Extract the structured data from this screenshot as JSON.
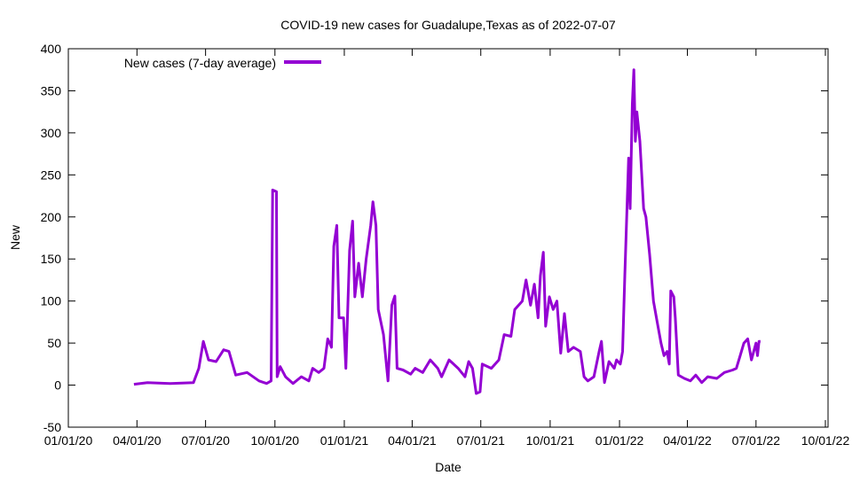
{
  "chart_data": {
    "type": "line",
    "title": "COVID-19 new cases for Guadalupe,Texas as of 2022-07-07",
    "xlabel": "Date",
    "ylabel": "New",
    "xlim": [
      "2020-01-01",
      "2022-10-01"
    ],
    "ylim": [
      -50,
      400
    ],
    "x_ticks": [
      "01/01/20",
      "04/01/20",
      "07/01/20",
      "10/01/20",
      "01/01/21",
      "04/01/21",
      "07/01/21",
      "10/01/21",
      "01/01/22",
      "04/01/22",
      "07/01/22",
      "10/01/22"
    ],
    "x_tick_dates": [
      "2020-01-01",
      "2020-04-01",
      "2020-07-01",
      "2020-10-01",
      "2021-01-01",
      "2021-04-01",
      "2021-07-01",
      "2021-10-01",
      "2022-01-01",
      "2022-04-01",
      "2022-07-01",
      "2022-10-01"
    ],
    "y_ticks": [
      -50,
      0,
      50,
      100,
      150,
      200,
      250,
      300,
      350,
      400
    ],
    "grid": false,
    "legend_position": "top-left",
    "series": [
      {
        "name": "New cases (7-day average)",
        "color": "#9400d3",
        "points": [
          [
            "2020-03-28",
            1
          ],
          [
            "2020-04-15",
            3
          ],
          [
            "2020-05-15",
            2
          ],
          [
            "2020-06-15",
            3
          ],
          [
            "2020-06-22",
            20
          ],
          [
            "2020-06-28",
            52
          ],
          [
            "2020-07-05",
            30
          ],
          [
            "2020-07-15",
            28
          ],
          [
            "2020-07-25",
            42
          ],
          [
            "2020-08-01",
            40
          ],
          [
            "2020-08-10",
            12
          ],
          [
            "2020-08-25",
            15
          ],
          [
            "2020-09-10",
            5
          ],
          [
            "2020-09-20",
            2
          ],
          [
            "2020-09-26",
            5
          ],
          [
            "2020-09-28",
            232
          ],
          [
            "2020-10-03",
            230
          ],
          [
            "2020-10-04",
            10
          ],
          [
            "2020-10-08",
            22
          ],
          [
            "2020-10-15",
            10
          ],
          [
            "2020-10-25",
            2
          ],
          [
            "2020-11-05",
            10
          ],
          [
            "2020-11-15",
            5
          ],
          [
            "2020-11-20",
            20
          ],
          [
            "2020-11-28",
            15
          ],
          [
            "2020-12-05",
            20
          ],
          [
            "2020-12-10",
            55
          ],
          [
            "2020-12-15",
            45
          ],
          [
            "2020-12-18",
            165
          ],
          [
            "2020-12-22",
            190
          ],
          [
            "2020-12-25",
            80
          ],
          [
            "2020-12-31",
            80
          ],
          [
            "2021-01-03",
            20
          ],
          [
            "2021-01-08",
            160
          ],
          [
            "2021-01-12",
            195
          ],
          [
            "2021-01-15",
            105
          ],
          [
            "2021-01-20",
            145
          ],
          [
            "2021-01-25",
            105
          ],
          [
            "2021-01-30",
            150
          ],
          [
            "2021-02-05",
            190
          ],
          [
            "2021-02-08",
            218
          ],
          [
            "2021-02-12",
            190
          ],
          [
            "2021-02-15",
            90
          ],
          [
            "2021-02-22",
            60
          ],
          [
            "2021-02-28",
            5
          ],
          [
            "2021-03-05",
            95
          ],
          [
            "2021-03-09",
            106
          ],
          [
            "2021-03-12",
            20
          ],
          [
            "2021-03-20",
            18
          ],
          [
            "2021-03-30",
            13
          ],
          [
            "2021-04-05",
            20
          ],
          [
            "2021-04-15",
            15
          ],
          [
            "2021-04-25",
            30
          ],
          [
            "2021-05-05",
            20
          ],
          [
            "2021-05-10",
            10
          ],
          [
            "2021-05-20",
            30
          ],
          [
            "2021-06-01",
            20
          ],
          [
            "2021-06-10",
            10
          ],
          [
            "2021-06-15",
            28
          ],
          [
            "2021-06-20",
            20
          ],
          [
            "2021-06-25",
            -10
          ],
          [
            "2021-06-30",
            -8
          ],
          [
            "2021-07-03",
            25
          ],
          [
            "2021-07-15",
            20
          ],
          [
            "2021-07-25",
            30
          ],
          [
            "2021-08-01",
            60
          ],
          [
            "2021-08-10",
            58
          ],
          [
            "2021-08-15",
            90
          ],
          [
            "2021-08-25",
            100
          ],
          [
            "2021-08-30",
            125
          ],
          [
            "2021-09-05",
            95
          ],
          [
            "2021-09-10",
            120
          ],
          [
            "2021-09-15",
            80
          ],
          [
            "2021-09-18",
            130
          ],
          [
            "2021-09-22",
            158
          ],
          [
            "2021-09-25",
            70
          ],
          [
            "2021-09-30",
            105
          ],
          [
            "2021-10-05",
            90
          ],
          [
            "2021-10-10",
            100
          ],
          [
            "2021-10-15",
            38
          ],
          [
            "2021-10-20",
            85
          ],
          [
            "2021-10-25",
            40
          ],
          [
            "2021-11-01",
            45
          ],
          [
            "2021-11-10",
            40
          ],
          [
            "2021-11-15",
            10
          ],
          [
            "2021-11-20",
            5
          ],
          [
            "2021-11-28",
            10
          ],
          [
            "2021-12-05",
            40
          ],
          [
            "2021-12-08",
            52
          ],
          [
            "2021-12-12",
            3
          ],
          [
            "2021-12-18",
            28
          ],
          [
            "2021-12-25",
            20
          ],
          [
            "2021-12-28",
            30
          ],
          [
            "2022-01-02",
            25
          ],
          [
            "2022-01-05",
            40
          ],
          [
            "2022-01-08",
            130
          ],
          [
            "2022-01-13",
            270
          ],
          [
            "2022-01-15",
            210
          ],
          [
            "2022-01-18",
            335
          ],
          [
            "2022-01-20",
            375
          ],
          [
            "2022-01-22",
            290
          ],
          [
            "2022-01-24",
            325
          ],
          [
            "2022-01-28",
            290
          ],
          [
            "2022-02-02",
            210
          ],
          [
            "2022-02-05",
            200
          ],
          [
            "2022-02-10",
            155
          ],
          [
            "2022-02-15",
            100
          ],
          [
            "2022-02-20",
            75
          ],
          [
            "2022-02-25",
            50
          ],
          [
            "2022-03-01",
            35
          ],
          [
            "2022-03-05",
            40
          ],
          [
            "2022-03-08",
            25
          ],
          [
            "2022-03-10",
            112
          ],
          [
            "2022-03-14",
            105
          ],
          [
            "2022-03-16",
            80
          ],
          [
            "2022-03-20",
            12
          ],
          [
            "2022-03-28",
            8
          ],
          [
            "2022-04-05",
            5
          ],
          [
            "2022-04-12",
            12
          ],
          [
            "2022-04-20",
            3
          ],
          [
            "2022-04-28",
            10
          ],
          [
            "2022-05-10",
            8
          ],
          [
            "2022-05-20",
            15
          ],
          [
            "2022-05-31",
            18
          ],
          [
            "2022-06-05",
            20
          ],
          [
            "2022-06-10",
            35
          ],
          [
            "2022-06-15",
            50
          ],
          [
            "2022-06-20",
            55
          ],
          [
            "2022-06-25",
            30
          ],
          [
            "2022-07-01",
            50
          ],
          [
            "2022-07-03",
            35
          ],
          [
            "2022-07-05",
            52
          ],
          [
            "2022-07-07",
            52
          ]
        ]
      }
    ]
  }
}
